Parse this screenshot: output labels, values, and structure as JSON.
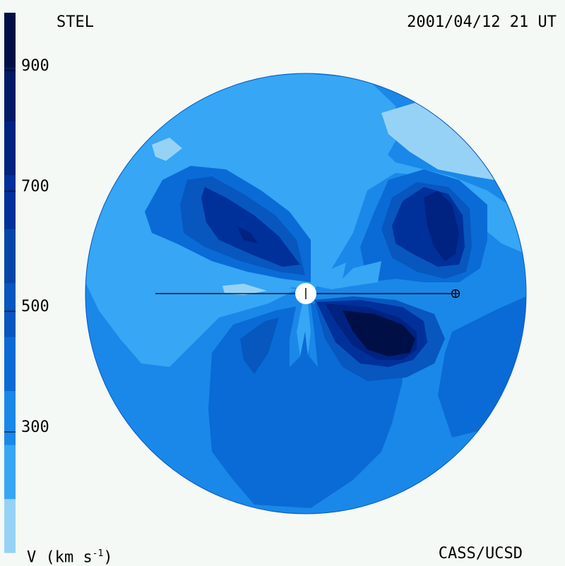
{
  "header": {
    "left_label": "STEL",
    "right_label": "2001/04/12 21 UT"
  },
  "footer": {
    "left_label": "V (km s",
    "left_label_sup": "-1",
    "left_label_close": ")",
    "right_label": "CASS/UCSD"
  },
  "colorbar": {
    "ticks": [
      "900",
      "700",
      "500",
      "300"
    ],
    "colors": [
      "#96d2f5",
      "#36a6f5",
      "#1a88e9",
      "#0a6bd6",
      "#0757bf",
      "#0446a8",
      "#003099",
      "#002280",
      "#001a66",
      "#000f45"
    ]
  },
  "map_colors": {
    "level1": "#96d2f5",
    "level2": "#36a6f5",
    "level3": "#1a88e9",
    "level4": "#0a6bd6",
    "level5": "#0757bf",
    "level6": "#003099",
    "level7": "#002280",
    "level8": "#000f45"
  },
  "symbols": {
    "sun": "sun-icon",
    "earth": "earth-icon"
  }
}
